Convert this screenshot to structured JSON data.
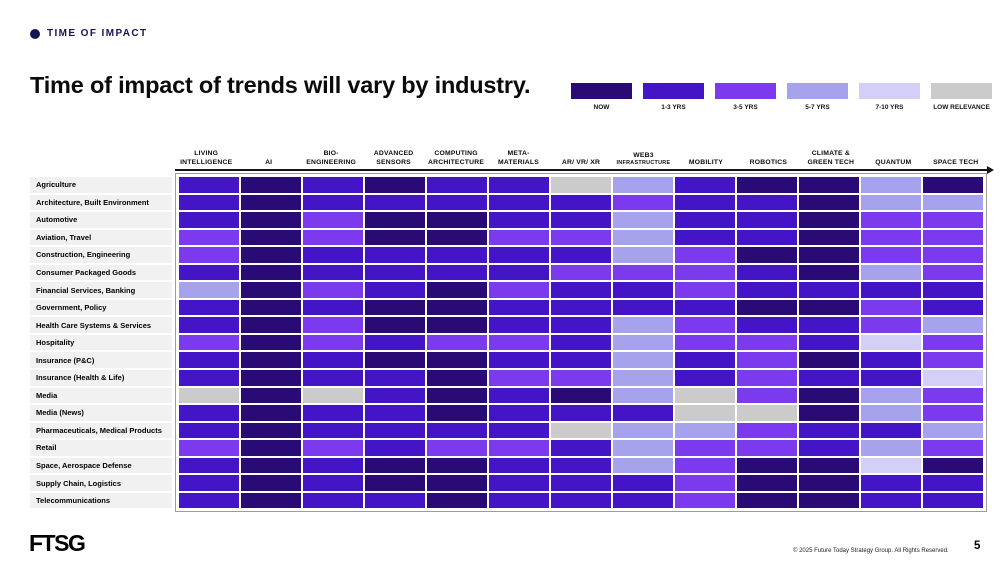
{
  "eyebrow": {
    "label": "TIME OF IMPACT"
  },
  "title": "Time of impact of trends will vary by industry.",
  "footer": {
    "logo": "FTSG",
    "copyright": "© 2025 Future Today Strategy Group. All Rights Reserved.",
    "page": "5"
  },
  "chart_data": {
    "type": "heatmap",
    "title": "Time of impact of trends will vary by industry.",
    "legend_position": "top-right",
    "legend": [
      {
        "code": "NOW",
        "label": "NOW",
        "color": "#2a0a75"
      },
      {
        "code": "1-3",
        "label": "1-3 YRS",
        "color": "#4315c6"
      },
      {
        "code": "3-5",
        "label": "3-5 YRS",
        "color": "#7c3aee"
      },
      {
        "code": "5-7",
        "label": "5-7 YRS",
        "color": "#a6a2ec"
      },
      {
        "code": "7-10",
        "label": "7-10 YRS",
        "color": "#d4cff7"
      },
      {
        "code": "LOW",
        "label": "LOW RELEVANCE",
        "color": "#cbcbcb"
      }
    ],
    "columns": [
      {
        "label": "LIVING INTELLIGENCE"
      },
      {
        "label": "AI"
      },
      {
        "label": "BIO-ENGINEERING"
      },
      {
        "label": "ADVANCED SENSORS"
      },
      {
        "label": "COMPUTING ARCHITECTURE"
      },
      {
        "label": "META-MATERIALS"
      },
      {
        "label": "AR/ VR/ XR"
      },
      {
        "label": "WEB3",
        "sub": "INFRASTRUCTURE"
      },
      {
        "label": "MOBILITY"
      },
      {
        "label": "ROBOTICS"
      },
      {
        "label": "CLIMATE & GREEN TECH"
      },
      {
        "label": "QUANTUM"
      },
      {
        "label": "SPACE TECH"
      }
    ],
    "rows": [
      {
        "label": "Agriculture",
        "cells": [
          "1-3",
          "NOW",
          "1-3",
          "NOW",
          "1-3",
          "1-3",
          "LOW",
          "5-7",
          "1-3",
          "NOW",
          "NOW",
          "5-7",
          "NOW"
        ]
      },
      {
        "label": "Architecture, Built Environment",
        "cells": [
          "1-3",
          "NOW",
          "1-3",
          "1-3",
          "1-3",
          "1-3",
          "1-3",
          "3-5",
          "1-3",
          "1-3",
          "NOW",
          "5-7",
          "5-7"
        ]
      },
      {
        "label": "Automotive",
        "cells": [
          "1-3",
          "NOW",
          "3-5",
          "NOW",
          "NOW",
          "1-3",
          "1-3",
          "5-7",
          "1-3",
          "1-3",
          "NOW",
          "3-5",
          "3-5"
        ]
      },
      {
        "label": "Aviation, Travel",
        "cells": [
          "3-5",
          "NOW",
          "3-5",
          "NOW",
          "NOW",
          "3-5",
          "3-5",
          "5-7",
          "1-3",
          "1-3",
          "NOW",
          "3-5",
          "3-5"
        ]
      },
      {
        "label": "Construction, Engineering",
        "cells": [
          "3-5",
          "NOW",
          "1-3",
          "1-3",
          "1-3",
          "1-3",
          "1-3",
          "5-7",
          "3-5",
          "NOW",
          "NOW",
          "3-5",
          "3-5"
        ]
      },
      {
        "label": "Consumer Packaged Goods",
        "cells": [
          "1-3",
          "NOW",
          "1-3",
          "1-3",
          "1-3",
          "1-3",
          "3-5",
          "3-5",
          "3-5",
          "1-3",
          "NOW",
          "5-7",
          "3-5"
        ]
      },
      {
        "label": "Financial Services, Banking",
        "cells": [
          "5-7",
          "NOW",
          "3-5",
          "1-3",
          "NOW",
          "3-5",
          "1-3",
          "1-3",
          "3-5",
          "1-3",
          "1-3",
          "1-3",
          "1-3"
        ]
      },
      {
        "label": "Government, Policy",
        "cells": [
          "1-3",
          "NOW",
          "1-3",
          "NOW",
          "NOW",
          "1-3",
          "1-3",
          "1-3",
          "1-3",
          "NOW",
          "NOW",
          "3-5",
          "1-3"
        ]
      },
      {
        "label": "Health Care Systems & Services",
        "cells": [
          "1-3",
          "NOW",
          "3-5",
          "NOW",
          "NOW",
          "1-3",
          "1-3",
          "5-7",
          "3-5",
          "1-3",
          "1-3",
          "3-5",
          "5-7"
        ]
      },
      {
        "label": "Hospitality",
        "cells": [
          "3-5",
          "NOW",
          "3-5",
          "1-3",
          "3-5",
          "3-5",
          "1-3",
          "5-7",
          "3-5",
          "3-5",
          "1-3",
          "7-10",
          "3-5"
        ]
      },
      {
        "label": "Insurance (P&C)",
        "cells": [
          "1-3",
          "NOW",
          "1-3",
          "NOW",
          "NOW",
          "1-3",
          "1-3",
          "5-7",
          "1-3",
          "3-5",
          "NOW",
          "1-3",
          "3-5"
        ]
      },
      {
        "label": "Insurance (Health & Life)",
        "cells": [
          "1-3",
          "NOW",
          "1-3",
          "1-3",
          "NOW",
          "3-5",
          "3-5",
          "5-7",
          "1-3",
          "3-5",
          "1-3",
          "1-3",
          "7-10"
        ]
      },
      {
        "label": "Media",
        "cells": [
          "LOW",
          "NOW",
          "LOW",
          "1-3",
          "NOW",
          "1-3",
          "NOW",
          "5-7",
          "LOW",
          "3-5",
          "NOW",
          "5-7",
          "3-5"
        ]
      },
      {
        "label": "Media (News)",
        "cells": [
          "1-3",
          "NOW",
          "1-3",
          "1-3",
          "NOW",
          "1-3",
          "1-3",
          "1-3",
          "LOW",
          "LOW",
          "NOW",
          "5-7",
          "3-5"
        ]
      },
      {
        "label": "Pharmaceuticals, Medical Products",
        "cells": [
          "1-3",
          "NOW",
          "1-3",
          "1-3",
          "1-3",
          "1-3",
          "LOW",
          "5-7",
          "5-7",
          "3-5",
          "1-3",
          "1-3",
          "5-7"
        ]
      },
      {
        "label": "Retail",
        "cells": [
          "3-5",
          "NOW",
          "3-5",
          "1-3",
          "3-5",
          "3-5",
          "1-3",
          "5-7",
          "3-5",
          "3-5",
          "1-3",
          "5-7",
          "3-5"
        ]
      },
      {
        "label": "Space, Aerospace Defense",
        "cells": [
          "1-3",
          "NOW",
          "1-3",
          "NOW",
          "NOW",
          "1-3",
          "1-3",
          "5-7",
          "3-5",
          "NOW",
          "NOW",
          "7-10",
          "NOW"
        ]
      },
      {
        "label": "Supply Chain, Logistics",
        "cells": [
          "1-3",
          "NOW",
          "1-3",
          "NOW",
          "NOW",
          "1-3",
          "1-3",
          "1-3",
          "3-5",
          "NOW",
          "NOW",
          "1-3",
          "1-3"
        ]
      },
      {
        "label": "Telecommunications",
        "cells": [
          "1-3",
          "NOW",
          "1-3",
          "1-3",
          "NOW",
          "1-3",
          "1-3",
          "1-3",
          "3-5",
          "NOW",
          "NOW",
          "1-3",
          "1-3"
        ]
      }
    ]
  }
}
